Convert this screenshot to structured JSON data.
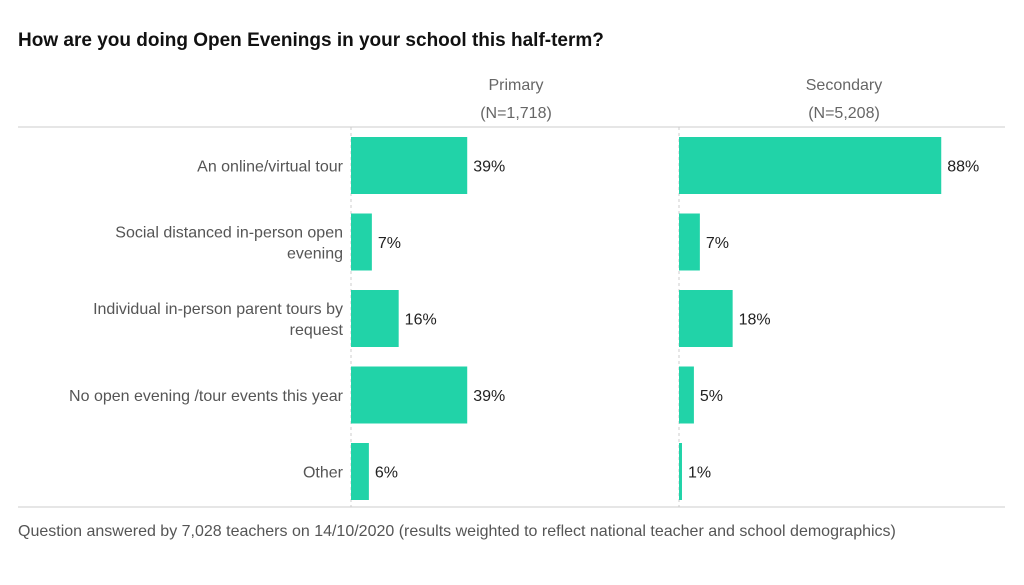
{
  "chart_data": {
    "type": "bar",
    "orientation": "horizontal",
    "title": "How are you doing Open Evenings in your school this half-term?",
    "categories": [
      "An online/virtual tour",
      "Social distanced in-person open evening",
      "Individual in-person parent tours by request",
      "No open evening /tour events this year",
      "Other"
    ],
    "category_lines": [
      [
        "An online/virtual tour"
      ],
      [
        "Social distanced in-person open",
        "evening"
      ],
      [
        "Individual in-person parent tours by",
        "request"
      ],
      [
        "No open evening /tour events this year"
      ],
      [
        "Other"
      ]
    ],
    "series": [
      {
        "name": "Primary",
        "subtitle": "(N=1,718)",
        "values": [
          39,
          7,
          16,
          39,
          6
        ],
        "labels": [
          "39%",
          "7%",
          "16%",
          "39%",
          "6%"
        ]
      },
      {
        "name": "Secondary",
        "subtitle": "(N=5,208)",
        "values": [
          88,
          7,
          18,
          5,
          1
        ],
        "labels": [
          "88%",
          "7%",
          "18%",
          "5%",
          "1%"
        ]
      }
    ],
    "xlim": [
      0,
      100
    ],
    "bar_color": "#21d3a8",
    "grid": false,
    "footnote": "Question answered by 7,028 teachers on 14/10/2020 (results weighted to reflect national teacher and school demographics)"
  }
}
